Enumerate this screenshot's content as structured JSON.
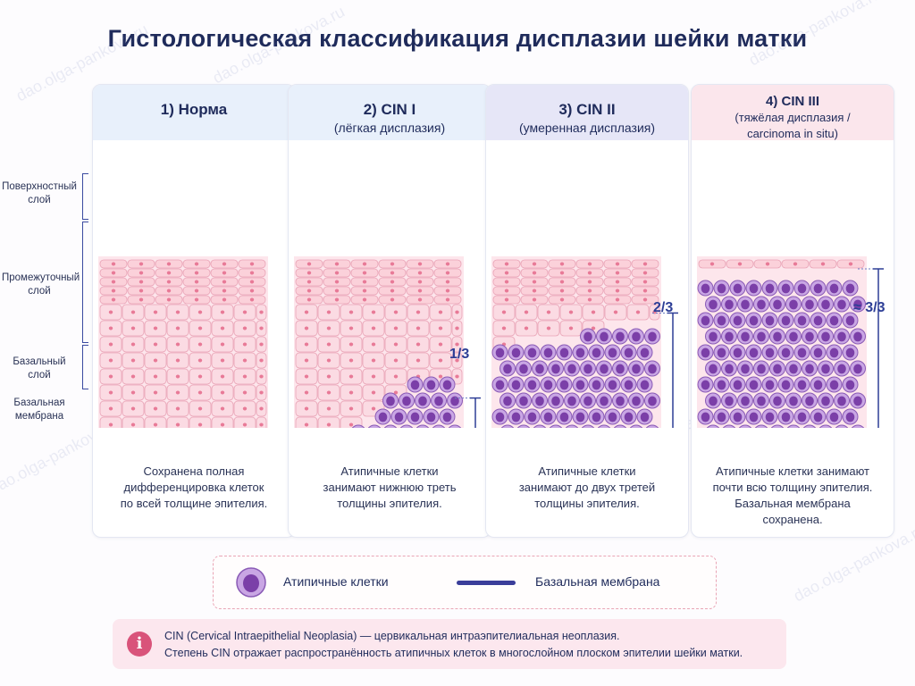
{
  "title": "Гистологическая классификация дисплазии шейки матки",
  "watermark": "dao.olga-pankova.ru",
  "side_labels": {
    "surface": [
      "Поверхностный",
      "слой"
    ],
    "intermediate": [
      "Промежуточный",
      "слой"
    ],
    "basal": [
      "Базальный",
      "слой"
    ],
    "membrane": [
      "Базальная",
      "мембрана"
    ]
  },
  "stages": [
    {
      "title": "1) Норма",
      "subtitle": "",
      "atypical_fraction": 0,
      "ratio_label": "",
      "head_color": "#e8f0fb",
      "description": [
        "Сохранена полная",
        "дифференцировка клеток",
        "по всей толщине эпителия."
      ]
    },
    {
      "title": "2) CIN I",
      "subtitle": "(лёгкая дисплазия)",
      "atypical_fraction": 0.33,
      "ratio_label": "1/3",
      "head_color": "#e8f0fb",
      "description": [
        "Атипичные клетки",
        "занимают нижнюю треть",
        "толщины эпителия."
      ]
    },
    {
      "title": "3) CIN II",
      "subtitle": "(умеренная дисплазия)",
      "atypical_fraction": 0.67,
      "ratio_label": "2/3",
      "head_color": "#e6e6f7",
      "description": [
        "Атипичные клетки",
        "занимают до двух третей",
        "толщины эпителия."
      ]
    },
    {
      "title": "4) CIN III",
      "subtitle": "(тяжёлая дисплазия /",
      "subtitle2": "carcinoma in situ)",
      "atypical_fraction": 0.95,
      "ratio_label": "≈ 3/3",
      "head_color": "#fbe6ec",
      "description": [
        "Атипичные клетки занимают",
        "почти всю толщину эпителия.",
        "Базальная мембрана",
        "сохранена."
      ]
    }
  ],
  "legend": {
    "atypical": "Атипичные клетки",
    "membrane": "Базальная мембрана",
    "colors": {
      "atypical": "#a876cf",
      "membrane": "#3a3e9a",
      "normal": "#f6c4cf",
      "basal": "#e06fa2"
    }
  },
  "info": {
    "icon": "info-icon",
    "line1": "CIN (Cervical Intraepithelial Neoplasia) — цервикальная интраэпителиальная неоплазия.",
    "line2": "Степень CIN отражает распространённость атипичных клеток в многослойном плоском эпителии шейки матки."
  }
}
